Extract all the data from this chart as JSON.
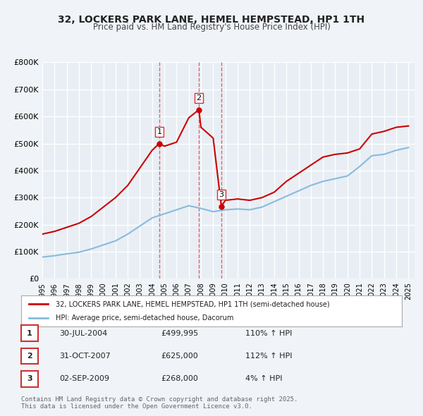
{
  "title": "32, LOCKERS PARK LANE, HEMEL HEMPSTEAD, HP1 1TH",
  "subtitle": "Price paid vs. HM Land Registry's House Price Index (HPI)",
  "bg_color": "#f0f4f8",
  "plot_bg_color": "#e8eef4",
  "grid_color": "#ffffff",
  "line1_color": "#cc0000",
  "line2_color": "#88bbdd",
  "ylim": [
    0,
    800000
  ],
  "yticks": [
    0,
    100000,
    200000,
    300000,
    400000,
    500000,
    600000,
    700000,
    800000
  ],
  "ytick_labels": [
    "£0",
    "£100K",
    "£200K",
    "£300K",
    "£400K",
    "£500K",
    "£600K",
    "£700K",
    "£800K"
  ],
  "xlim_start": 1995,
  "xlim_end": 2025.5,
  "sale_dates": [
    2004.58,
    2007.83,
    2009.67
  ],
  "sale_prices": [
    499995,
    625000,
    268000
  ],
  "sale_labels": [
    "1",
    "2",
    "3"
  ],
  "vline_color": "#dd4444",
  "legend1_text": "32, LOCKERS PARK LANE, HEMEL HEMPSTEAD, HP1 1TH (semi-detached house)",
  "legend2_text": "HPI: Average price, semi-detached house, Dacorum",
  "table_rows": [
    [
      "1",
      "30-JUL-2004",
      "£499,995",
      "110% ↑ HPI"
    ],
    [
      "2",
      "31-OCT-2007",
      "£625,000",
      "112% ↑ HPI"
    ],
    [
      "3",
      "02-SEP-2009",
      "£268,000",
      "4% ↑ HPI"
    ]
  ],
  "footer": "Contains HM Land Registry data © Crown copyright and database right 2025.\nThis data is licensed under the Open Government Licence v3.0.",
  "hpi_data": {
    "years": [
      1995,
      1996,
      1997,
      1998,
      1999,
      2000,
      2001,
      2002,
      2003,
      2004,
      2005,
      2006,
      2007,
      2008,
      2009,
      2010,
      2011,
      2012,
      2013,
      2014,
      2015,
      2016,
      2017,
      2018,
      2019,
      2020,
      2021,
      2022,
      2023,
      2024,
      2025
    ],
    "values": [
      80000,
      85000,
      92000,
      98000,
      110000,
      125000,
      140000,
      165000,
      195000,
      225000,
      240000,
      255000,
      270000,
      260000,
      248000,
      255000,
      258000,
      255000,
      265000,
      285000,
      305000,
      325000,
      345000,
      360000,
      370000,
      380000,
      415000,
      455000,
      460000,
      475000,
      485000
    ]
  },
  "price_data": {
    "years": [
      1995,
      1996,
      1997,
      1998,
      1999,
      2000,
      2001,
      2002,
      2003,
      2004,
      2004.58,
      2005,
      2006,
      2007,
      2007.83,
      2008,
      2009,
      2009.67,
      2010,
      2011,
      2012,
      2013,
      2014,
      2015,
      2016,
      2017,
      2018,
      2019,
      2020,
      2021,
      2022,
      2023,
      2024,
      2025
    ],
    "values": [
      165000,
      175000,
      190000,
      205000,
      230000,
      265000,
      300000,
      345000,
      410000,
      475000,
      499995,
      490000,
      505000,
      595000,
      625000,
      560000,
      520000,
      268000,
      290000,
      295000,
      290000,
      300000,
      320000,
      360000,
      390000,
      420000,
      450000,
      460000,
      465000,
      480000,
      535000,
      545000,
      560000,
      565000
    ]
  }
}
